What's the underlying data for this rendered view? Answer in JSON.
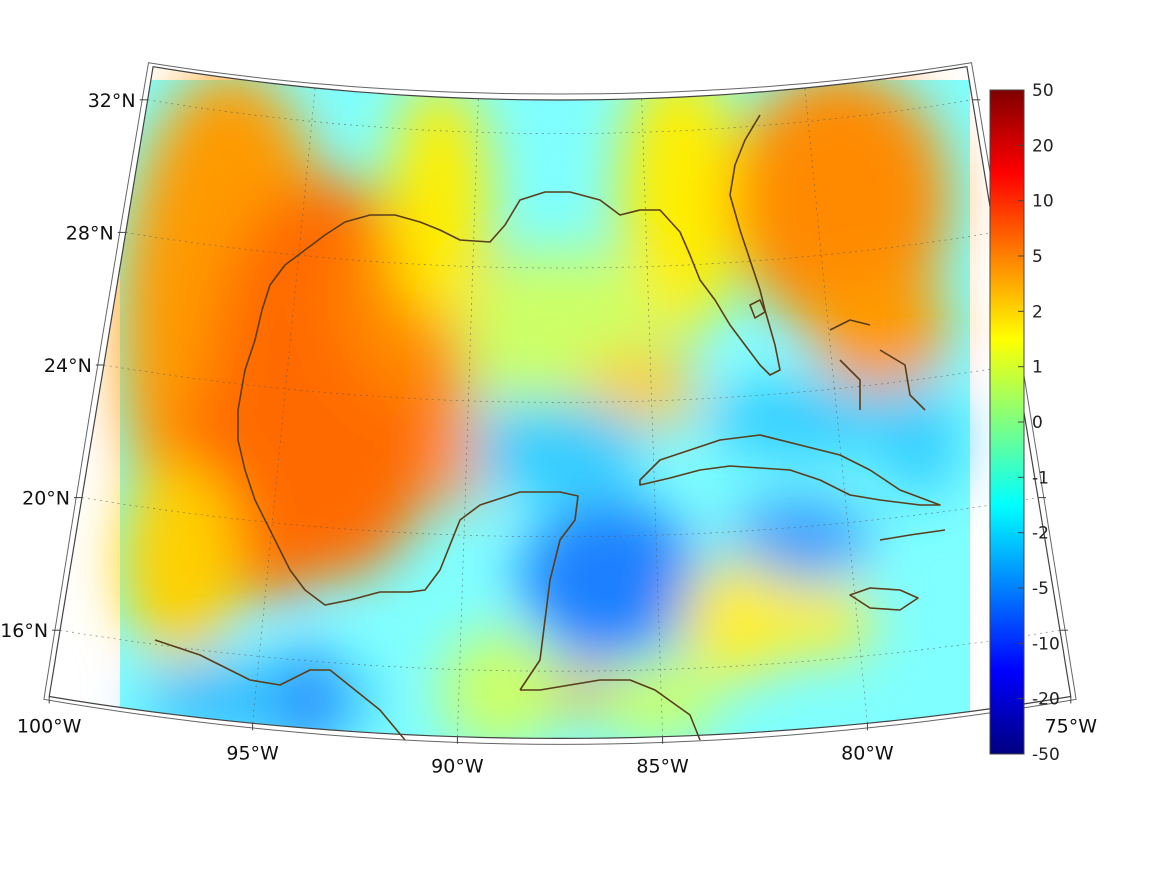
{
  "map": {
    "projection": "conic",
    "lon_range": [
      -100,
      -75
    ],
    "lat_range": [
      14,
      33
    ],
    "lon_ticks": [
      {
        "value": -100,
        "label": "100°W"
      },
      {
        "value": -95,
        "label": "95°W"
      },
      {
        "value": -90,
        "label": "90°W"
      },
      {
        "value": -85,
        "label": "85°W"
      },
      {
        "value": -80,
        "label": "80°W"
      },
      {
        "value": -75,
        "label": "75°W"
      }
    ],
    "lat_ticks": [
      {
        "value": 32,
        "label": "32°N"
      },
      {
        "value": 28,
        "label": "28°N"
      },
      {
        "value": 24,
        "label": "24°N"
      },
      {
        "value": 20,
        "label": "20°N"
      },
      {
        "value": 16,
        "label": "16°N"
      }
    ],
    "grid": true,
    "coastline_color": "#5a3d1a",
    "frame_color": "#444444"
  },
  "colorbar": {
    "orientation": "vertical",
    "placement": "right",
    "colormap": "jet",
    "ticks": [
      "50",
      "20",
      "10",
      "5",
      "2",
      "1",
      "0",
      "-1",
      "-2",
      "-5",
      "-10",
      "-20",
      "-50"
    ]
  }
}
